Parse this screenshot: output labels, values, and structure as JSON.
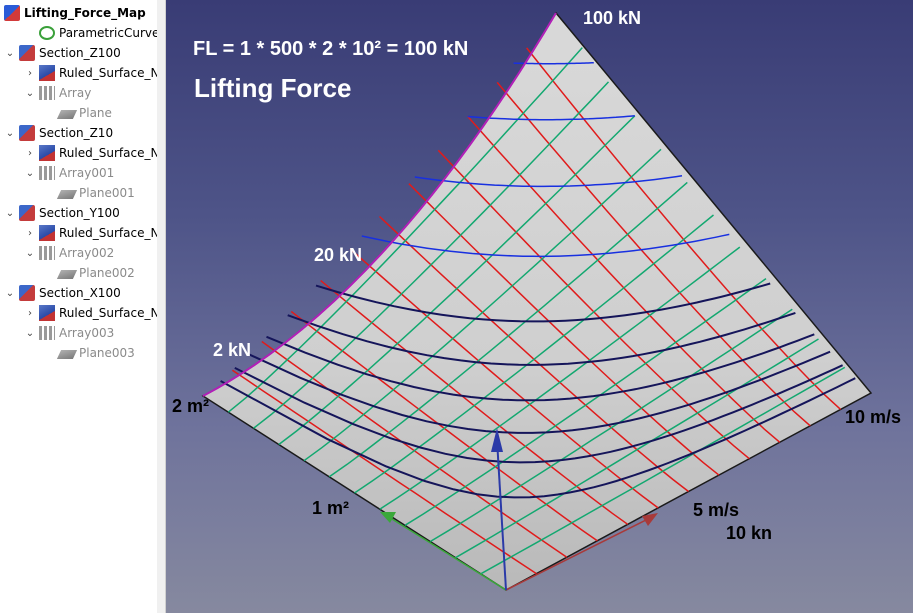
{
  "tree": {
    "items": [
      {
        "label": "Lifting_Force_Map",
        "depth": 0,
        "arrow": "",
        "icon": "document-icon",
        "style": "root"
      },
      {
        "label": "ParametricCurve_FL",
        "depth": 1,
        "arrow": "",
        "icon": "curve-icon",
        "style": ""
      },
      {
        "label": "Section_Z100",
        "depth": 0,
        "arrow": "v",
        "icon": "section-icon",
        "style": ""
      },
      {
        "label": "Ruled_Surface_N",
        "depth": 1,
        "arrow": ">",
        "icon": "surface-icon",
        "style": ""
      },
      {
        "label": "Array",
        "depth": 1,
        "arrow": "v",
        "icon": "array-icon",
        "style": "inactive"
      },
      {
        "label": "Plane",
        "depth": 2,
        "arrow": "",
        "icon": "plane-icon",
        "style": "inactive"
      },
      {
        "label": "Section_Z10",
        "depth": 0,
        "arrow": "v",
        "icon": "section-icon",
        "style": ""
      },
      {
        "label": "Ruled_Surface_N",
        "depth": 1,
        "arrow": ">",
        "icon": "surface-icon",
        "style": ""
      },
      {
        "label": "Array001",
        "depth": 1,
        "arrow": "v",
        "icon": "array-icon",
        "style": "inactive"
      },
      {
        "label": "Plane001",
        "depth": 2,
        "arrow": "",
        "icon": "plane-icon",
        "style": "inactive"
      },
      {
        "label": "Section_Y100",
        "depth": 0,
        "arrow": "v",
        "icon": "section-icon",
        "style": ""
      },
      {
        "label": "Ruled_Surface_N",
        "depth": 1,
        "arrow": ">",
        "icon": "surface-icon",
        "style": ""
      },
      {
        "label": "Array002",
        "depth": 1,
        "arrow": "v",
        "icon": "array-icon",
        "style": "inactive"
      },
      {
        "label": "Plane002",
        "depth": 2,
        "arrow": "",
        "icon": "plane-icon",
        "style": "inactive"
      },
      {
        "label": "Section_X100",
        "depth": 0,
        "arrow": "v",
        "icon": "section-icon",
        "style": ""
      },
      {
        "label": "Ruled_Surface_N",
        "depth": 1,
        "arrow": ">",
        "icon": "surface-icon",
        "style": ""
      },
      {
        "label": "Array003",
        "depth": 1,
        "arrow": "v",
        "icon": "array-icon",
        "style": "inactive"
      },
      {
        "label": "Plane003",
        "depth": 2,
        "arrow": "",
        "icon": "plane-icon",
        "style": "inactive"
      }
    ]
  },
  "view": {
    "formula": "FL = 1 * 500 * 2 * 10² = 100 kN",
    "title": "Lifting Force",
    "labels": {
      "top": "100 kN",
      "mid": "20 kN",
      "low": "2 kN",
      "area_max": "2 m²",
      "area_mid": "1 m²",
      "speed_max": "10 m/s",
      "speed_mid": "5 m/s",
      "force_axis": "10 kn"
    },
    "colors": {
      "surface": "#c8c8c8",
      "red_lines": "#e01b1b",
      "green_lines": "#13a870",
      "blue_lines": "#1830e0",
      "navy_lines": "#15155a",
      "edge_curve": "#b21fb8",
      "axis_z": "#2b3aa8",
      "axis_y": "#3aa83a",
      "axis_x": "#a83a3a"
    }
  }
}
